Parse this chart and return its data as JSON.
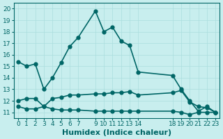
{
  "xlabel": "Humidex (Indice chaleur)",
  "ylabel": "",
  "bg_color": "#c8eeee",
  "grid_color": "#aadddd",
  "line_color": "#006666",
  "xlim": [
    -0.5,
    23.5
  ],
  "ylim": [
    10.5,
    20.5
  ],
  "yticks": [
    11,
    12,
    13,
    14,
    15,
    16,
    17,
    18,
    19,
    20
  ],
  "xtick_show_positions": [
    0,
    1,
    2,
    3,
    4,
    5,
    6,
    7,
    9,
    10,
    11,
    12,
    13,
    14,
    18,
    19,
    20,
    21,
    22,
    23
  ],
  "xtick_show_labels": [
    "0",
    "1",
    "2",
    "3",
    "4",
    "5",
    "6",
    "7",
    "9",
    "10",
    "11",
    "12",
    "13",
    "14",
    "18",
    "19",
    "20",
    "21",
    "22",
    "23"
  ],
  "line1_x": [
    0,
    1,
    2,
    3,
    4,
    5,
    6,
    7,
    9,
    10,
    11,
    12,
    13,
    14,
    18,
    19,
    20,
    21,
    22,
    23
  ],
  "line1_y": [
    15.4,
    15.0,
    15.2,
    13.0,
    14.0,
    15.3,
    16.7,
    17.5,
    19.8,
    18.0,
    18.4,
    17.2,
    16.8,
    14.5,
    14.2,
    13.0,
    12.0,
    11.1,
    11.5,
    11.0
  ],
  "line2_x": [
    0,
    1,
    2,
    3,
    4,
    5,
    6,
    7,
    9,
    10,
    11,
    12,
    13,
    14,
    18,
    19,
    20,
    21,
    22,
    23
  ],
  "line2_y": [
    12.0,
    12.2,
    12.2,
    11.5,
    12.2,
    12.3,
    12.5,
    12.5,
    12.6,
    12.6,
    12.7,
    12.7,
    12.8,
    12.5,
    12.7,
    12.9,
    11.9,
    11.5,
    11.4,
    11.0
  ],
  "line3_x": [
    0,
    1,
    2,
    3,
    4,
    5,
    6,
    7,
    9,
    10,
    11,
    12,
    13,
    14,
    18,
    19,
    20,
    21,
    22,
    23
  ],
  "line3_y": [
    11.5,
    11.3,
    11.3,
    11.5,
    11.3,
    11.2,
    11.2,
    11.2,
    11.1,
    11.1,
    11.1,
    11.1,
    11.1,
    11.1,
    11.1,
    11.0,
    10.8,
    11.0,
    11.0,
    11.0
  ],
  "marker_size": 3.5,
  "linewidth": 1.2,
  "font_size_ticks": 6.5,
  "font_size_xlabel": 8
}
